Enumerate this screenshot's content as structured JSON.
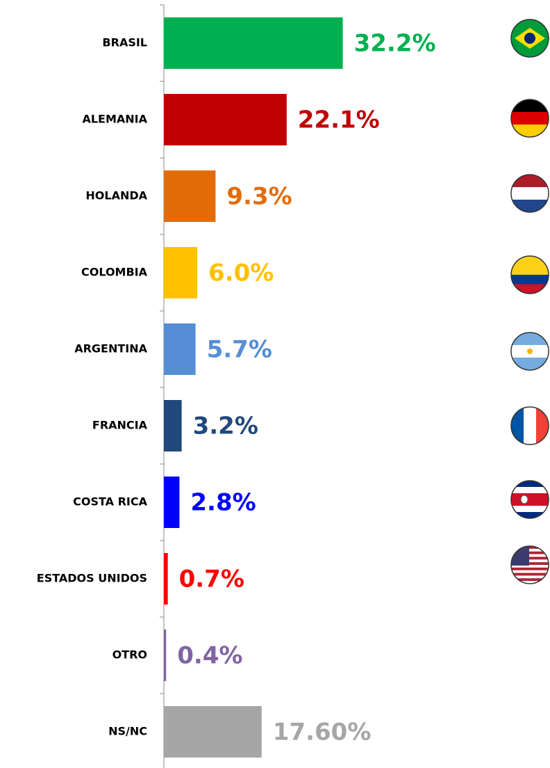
{
  "chart_data": {
    "type": "bar",
    "orientation": "horizontal",
    "categories": [
      "BRASIL",
      "ALEMANIA",
      "HOLANDA",
      "COLOMBIA",
      "ARGENTINA",
      "FRANCIA",
      "COSTA RICA",
      "ESTADOS UNIDOS",
      "OTRO",
      "NS/NC"
    ],
    "values": [
      32.2,
      22.1,
      9.3,
      6.0,
      5.7,
      3.2,
      2.8,
      0.7,
      0.4,
      17.6
    ],
    "value_labels": [
      "32.2%",
      "22.1%",
      "9.3%",
      "6.0%",
      "5.7%",
      "3.2%",
      "2.8%",
      "0.7%",
      "0.4%",
      "17.60%"
    ],
    "colors": [
      "#00b050",
      "#c00000",
      "#e36c09",
      "#ffc000",
      "#558ed5",
      "#1f497d",
      "#0000ff",
      "#ff0000",
      "#8064a2",
      "#a6a6a6"
    ]
  }
}
